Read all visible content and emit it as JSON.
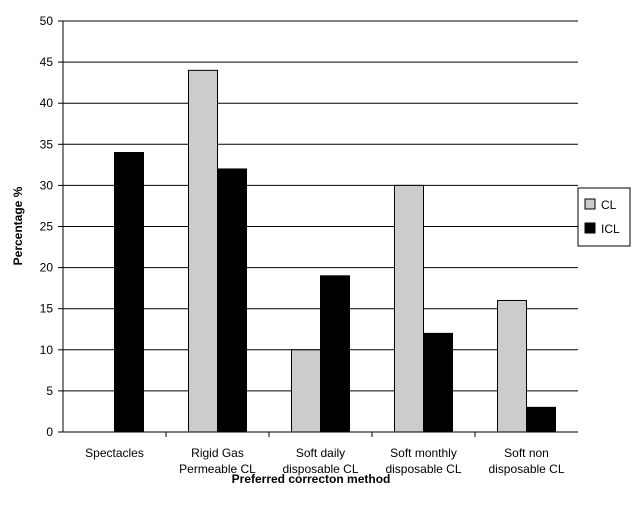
{
  "chart_data": {
    "type": "bar",
    "title": "",
    "xlabel": "Preferred correcton method",
    "ylabel": "Percentage %",
    "ylim": [
      0,
      50
    ],
    "yticks": [
      0,
      5,
      10,
      15,
      20,
      25,
      30,
      35,
      40,
      45,
      50
    ],
    "grid": true,
    "legend_position": "right",
    "categories": [
      [
        "Spectacles"
      ],
      [
        "Rigid Gas",
        "Permeable CL"
      ],
      [
        "Soft daily",
        "disposable CL"
      ],
      [
        "Soft monthly",
        "disposable CL"
      ],
      [
        "Soft non",
        "disposable CL"
      ]
    ],
    "series": [
      {
        "name": "CL",
        "color": "#cccccc",
        "values": [
          0,
          44,
          10,
          30,
          16
        ]
      },
      {
        "name": "ICL",
        "color": "#000000",
        "values": [
          34,
          32,
          19,
          12,
          3
        ]
      }
    ]
  }
}
